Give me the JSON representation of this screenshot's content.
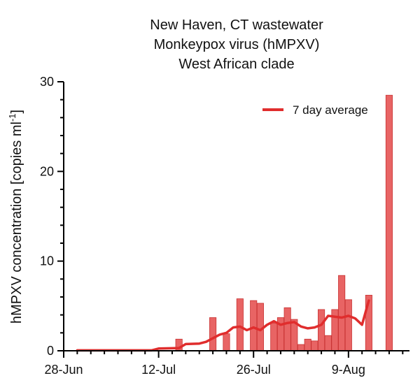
{
  "chart_data": {
    "type": "bar",
    "title": [
      "New Haven, CT wastewater",
      "Monkeypox virus (hMPXV)",
      "West African clade"
    ],
    "ylabel": "hMPXV concentration [copies ml",
    "ylabel_sup": "-1",
    "ylabel_close": "]",
    "xlim": [
      "2022-06-28",
      "2022-08-18"
    ],
    "ylim": [
      0,
      30
    ],
    "y_ticks": [
      0,
      10,
      20,
      30
    ],
    "x_ticks": [
      {
        "date": "2022-06-28",
        "label": "28-Jun"
      },
      {
        "date": "2022-07-12",
        "label": "12-Jul"
      },
      {
        "date": "2022-07-26",
        "label": "26-Jul"
      },
      {
        "date": "2022-08-09",
        "label": "9-Aug"
      }
    ],
    "bar_color": "#e86464",
    "bar_edge_color": "#c83232",
    "line_color": "#e02d2d",
    "bars": [
      {
        "date": "2022-07-15",
        "value": 1.3
      },
      {
        "date": "2022-07-20",
        "value": 3.7
      },
      {
        "date": "2022-07-22",
        "value": 1.9
      },
      {
        "date": "2022-07-24",
        "value": 5.8
      },
      {
        "date": "2022-07-26",
        "value": 5.6
      },
      {
        "date": "2022-07-27",
        "value": 5.3
      },
      {
        "date": "2022-07-29",
        "value": 3.1
      },
      {
        "date": "2022-07-30",
        "value": 3.7
      },
      {
        "date": "2022-07-31",
        "value": 4.8
      },
      {
        "date": "2022-08-01",
        "value": 3.5
      },
      {
        "date": "2022-08-02",
        "value": 0.7
      },
      {
        "date": "2022-08-03",
        "value": 1.3
      },
      {
        "date": "2022-08-04",
        "value": 1.1
      },
      {
        "date": "2022-08-05",
        "value": 4.6
      },
      {
        "date": "2022-08-06",
        "value": 1.7
      },
      {
        "date": "2022-08-07",
        "value": 4.6
      },
      {
        "date": "2022-08-08",
        "value": 8.4
      },
      {
        "date": "2022-08-09",
        "value": 5.7
      },
      {
        "date": "2022-08-12",
        "value": 6.2
      },
      {
        "date": "2022-08-15",
        "value": 28.5
      }
    ],
    "series": [
      {
        "name": "7 day average",
        "points": [
          {
            "date": "2022-06-30",
            "value": 0.05
          },
          {
            "date": "2022-07-11",
            "value": 0.05
          },
          {
            "date": "2022-07-12",
            "value": 0.25
          },
          {
            "date": "2022-07-15",
            "value": 0.3
          },
          {
            "date": "2022-07-16",
            "value": 0.75
          },
          {
            "date": "2022-07-18",
            "value": 0.8
          },
          {
            "date": "2022-07-19",
            "value": 1.0
          },
          {
            "date": "2022-07-21",
            "value": 1.8
          },
          {
            "date": "2022-07-22",
            "value": 2.0
          },
          {
            "date": "2022-07-23",
            "value": 2.6
          },
          {
            "date": "2022-07-24",
            "value": 2.7
          },
          {
            "date": "2022-07-25",
            "value": 2.3
          },
          {
            "date": "2022-07-26",
            "value": 2.6
          },
          {
            "date": "2022-07-27",
            "value": 2.3
          },
          {
            "date": "2022-07-28",
            "value": 2.9
          },
          {
            "date": "2022-07-29",
            "value": 3.3
          },
          {
            "date": "2022-07-30",
            "value": 2.9
          },
          {
            "date": "2022-07-31",
            "value": 3.1
          },
          {
            "date": "2022-08-01",
            "value": 3.2
          },
          {
            "date": "2022-08-02",
            "value": 2.7
          },
          {
            "date": "2022-08-03",
            "value": 2.5
          },
          {
            "date": "2022-08-04",
            "value": 2.6
          },
          {
            "date": "2022-08-05",
            "value": 2.9
          },
          {
            "date": "2022-08-06",
            "value": 3.9
          },
          {
            "date": "2022-08-07",
            "value": 3.8
          },
          {
            "date": "2022-08-08",
            "value": 3.7
          },
          {
            "date": "2022-08-09",
            "value": 3.9
          },
          {
            "date": "2022-08-10",
            "value": 3.6
          },
          {
            "date": "2022-08-11",
            "value": 2.9
          },
          {
            "date": "2022-08-12",
            "value": 5.6
          }
        ]
      }
    ],
    "legend_position": "top-right",
    "grid": false
  }
}
